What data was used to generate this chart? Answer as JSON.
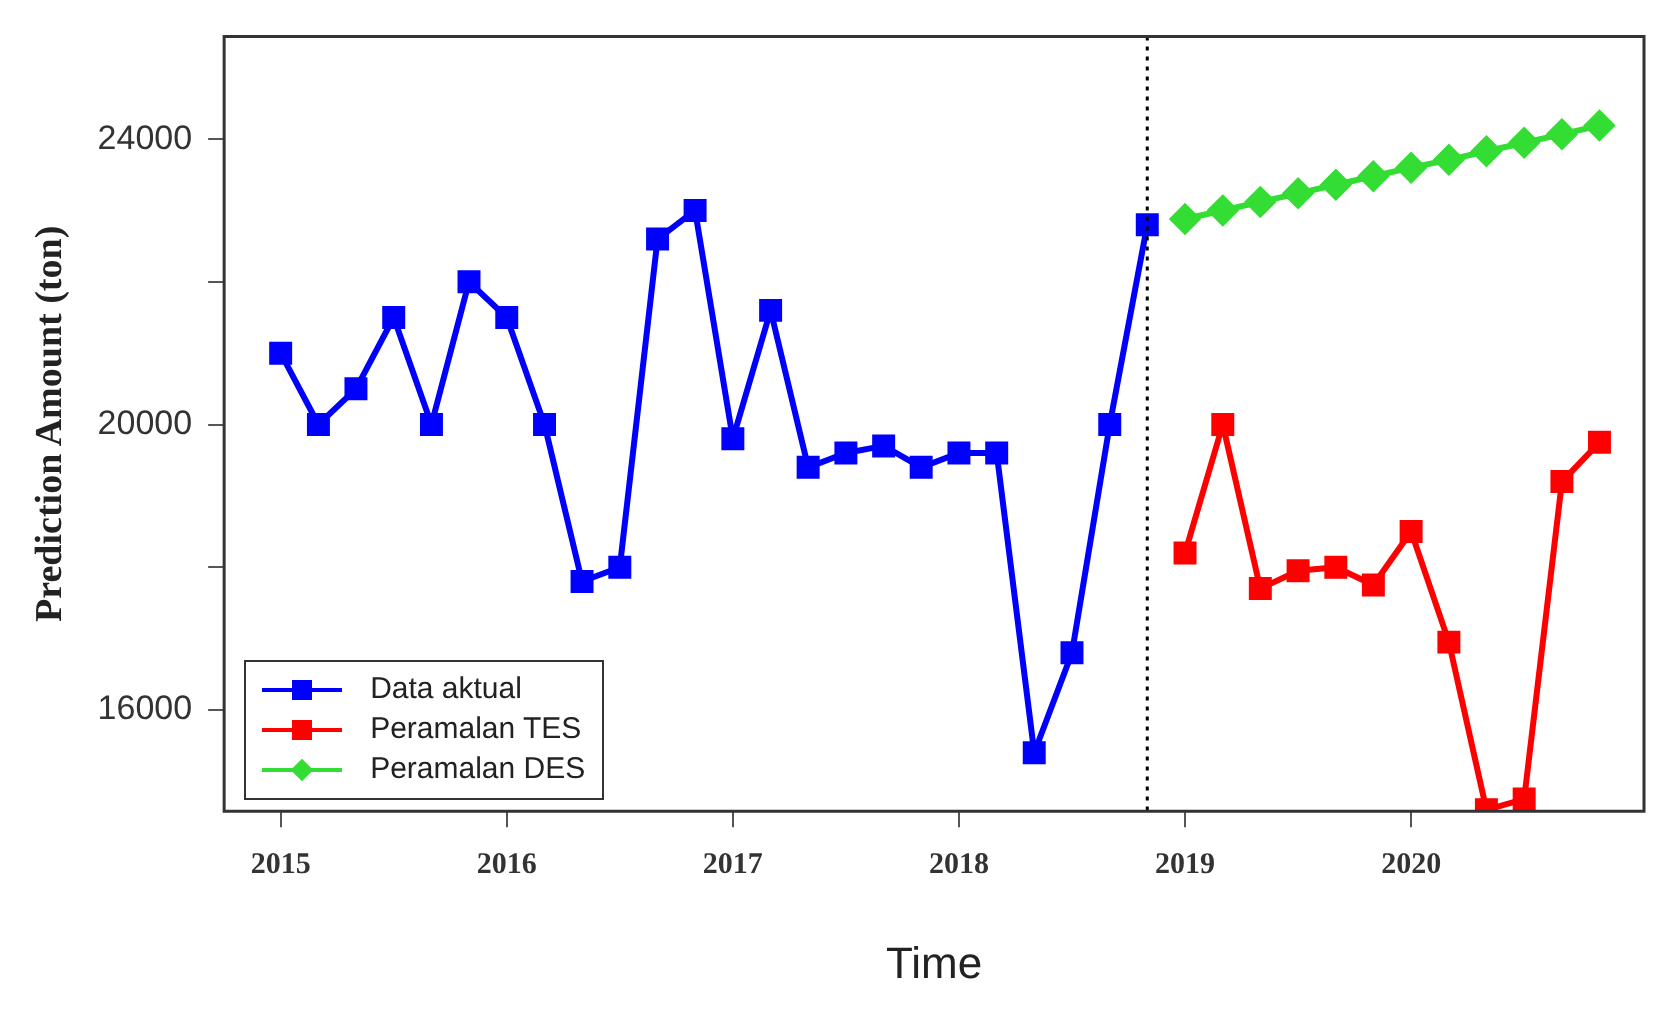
{
  "chart_data": {
    "type": "line",
    "xlabel": "Time",
    "ylabel": "Prediction Amount (ton)",
    "xlim": [
      2014.75,
      2021.03
    ],
    "xticks": [
      2015,
      2016,
      2017,
      2018,
      2019,
      2020
    ],
    "ylim": [
      14580,
      25440
    ],
    "yticks": [
      16000,
      {
        "value": 18000,
        "label": null
      },
      20000,
      {
        "value": 22000,
        "label": null
      },
      24000
    ],
    "grid": false,
    "legend": "bottom left",
    "line_style": "solid",
    "ref_lines": [
      {
        "axis": "x",
        "value": 2018.833,
        "label": null,
        "color": "#000000",
        "line_style": "dotted"
      }
    ],
    "series": [
      {
        "name": "Data aktual",
        "color": "#0000ff",
        "marker": "square",
        "x": [
          2015,
          2015.167,
          2015.333,
          2015.5,
          2015.667,
          2015.833,
          2016,
          2016.167,
          2016.333,
          2016.5,
          2016.667,
          2016.833,
          2017,
          2017.167,
          2017.333,
          2017.5,
          2017.667,
          2017.833,
          2018,
          2018.167,
          2018.333,
          2018.5,
          2018.667,
          2018.833
        ],
        "values": [
          21000,
          20000,
          20500,
          21500,
          20000,
          22000,
          21500,
          20000,
          17800,
          18000,
          22600,
          23000,
          19800,
          21600,
          19400,
          19600,
          19700,
          19400,
          19600,
          19600,
          15400,
          16800,
          20000,
          22800
        ]
      },
      {
        "name": "Peramalan TES",
        "color": "#ff0000",
        "marker": "square",
        "x": [
          2019,
          2019.167,
          2019.333,
          2019.5,
          2019.667,
          2019.833,
          2020,
          2020.167,
          2020.333,
          2020.5,
          2020.667,
          2020.833
        ],
        "values": [
          18200,
          20000,
          17700,
          17950,
          18000,
          17750,
          18500,
          16950,
          14600,
          14750,
          19200,
          19750
        ]
      },
      {
        "name": "Peramalan DES",
        "color": "#33dd33",
        "marker": "diamond",
        "x": [
          2019,
          2019.167,
          2019.333,
          2019.5,
          2019.667,
          2019.833,
          2020,
          2020.167,
          2020.333,
          2020.5,
          2020.667,
          2020.833
        ],
        "values": [
          22880,
          23000,
          23120,
          23240,
          23360,
          23480,
          23600,
          23710,
          23830,
          23950,
          24070,
          24190
        ]
      }
    ]
  }
}
